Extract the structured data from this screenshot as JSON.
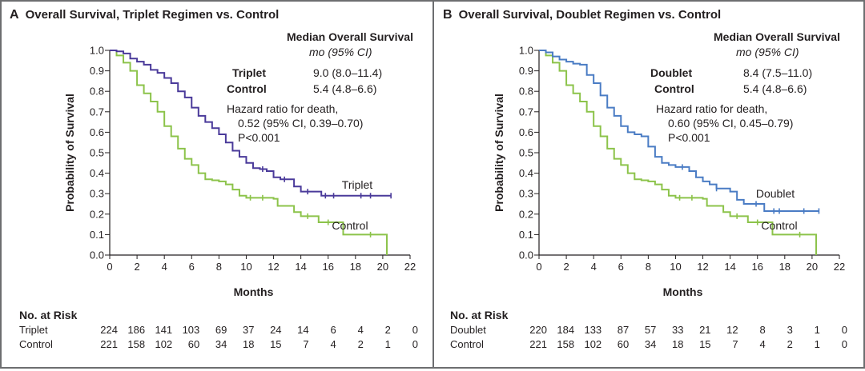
{
  "colors": {
    "triplet": "#4a3a9a",
    "doublet": "#4a7cc4",
    "control": "#8cc34a",
    "axis": "#231f20",
    "frame": "#6d6e70"
  },
  "chart_data": [
    {
      "type": "line",
      "subtype": "kaplan-meier",
      "panel_letter": "A",
      "title": "Overall Survival, Triplet Regimen vs. Control",
      "xlabel": "Months",
      "ylabel": "Probability of Survival",
      "xlim": [
        0,
        22
      ],
      "ylim": [
        0,
        1.0
      ],
      "x_ticks": [
        "0",
        "2",
        "4",
        "6",
        "8",
        "10",
        "12",
        "14",
        "16",
        "18",
        "20",
        "22"
      ],
      "y_ticks": [
        "0.0",
        "0.1",
        "0.2",
        "0.3",
        "0.4",
        "0.5",
        "0.6",
        "0.7",
        "0.8",
        "0.9",
        "1.0"
      ],
      "grid": false,
      "median_header": "Median Overall Survival",
      "median_subheader": "mo (95% CI)",
      "groups": [
        {
          "name": "Triplet",
          "median": "9.0 (8.0–11.4)"
        },
        {
          "name": "Control",
          "median": "5.4 (4.8–6.6)"
        }
      ],
      "hazard_lines": [
        "Hazard ratio for death,",
        "0.52 (95% CI, 0.39–0.70)",
        "P<0.001"
      ],
      "series": [
        {
          "name": "Triplet",
          "label": "Triplet",
          "color_key": "triplet",
          "x": [
            0,
            0.5,
            1.0,
            1.5,
            2.0,
            2.5,
            3.0,
            3.5,
            4.0,
            4.5,
            5.0,
            5.5,
            6.0,
            6.5,
            7.0,
            7.5,
            8.0,
            8.5,
            9.0,
            9.5,
            10.0,
            10.5,
            11.0,
            11.5,
            12.0,
            12.5,
            13.0,
            13.5,
            14.0,
            14.5,
            15.0,
            15.5,
            16.0,
            17.0,
            18.0,
            19.0,
            20.0,
            20.6
          ],
          "y": [
            1.0,
            0.995,
            0.985,
            0.96,
            0.945,
            0.93,
            0.905,
            0.89,
            0.865,
            0.84,
            0.8,
            0.77,
            0.72,
            0.68,
            0.65,
            0.62,
            0.59,
            0.55,
            0.51,
            0.48,
            0.45,
            0.425,
            0.42,
            0.41,
            0.38,
            0.37,
            0.37,
            0.335,
            0.31,
            0.31,
            0.31,
            0.29,
            0.29,
            0.29,
            0.29,
            0.29,
            0.29,
            0.29
          ],
          "censor_x": [
            11.2,
            12.8,
            14.5,
            15.8,
            16.4,
            18.4,
            19.1,
            20.6
          ]
        },
        {
          "name": "Control",
          "label": "Control",
          "color_key": "control",
          "x": [
            0,
            0.5,
            1.0,
            1.5,
            2.0,
            2.5,
            3.0,
            3.5,
            4.0,
            4.5,
            5.0,
            5.5,
            6.0,
            6.5,
            7.0,
            7.5,
            8.0,
            8.5,
            9.0,
            9.5,
            10.0,
            11.0,
            12.0,
            12.3,
            13.5,
            14.0,
            15.3,
            16.0,
            17.1,
            19.0,
            20.3,
            20.3
          ],
          "y": [
            1.0,
            0.975,
            0.94,
            0.9,
            0.83,
            0.79,
            0.75,
            0.7,
            0.63,
            0.58,
            0.52,
            0.47,
            0.44,
            0.4,
            0.37,
            0.365,
            0.36,
            0.345,
            0.32,
            0.29,
            0.28,
            0.28,
            0.275,
            0.24,
            0.21,
            0.19,
            0.16,
            0.16,
            0.1,
            0.1,
            0.1,
            0.0
          ],
          "censor_x": [
            10.3,
            11.2,
            14.5,
            16.0,
            19.1
          ]
        }
      ],
      "risk_table": {
        "title": "No. at Risk",
        "rows": [
          {
            "name": "Triplet",
            "values": [
              "224",
              "186",
              "141",
              "103",
              "69",
              "37",
              "24",
              "14",
              "6",
              "4",
              "2",
              "0"
            ]
          },
          {
            "name": "Control",
            "values": [
              "221",
              "158",
              "102",
              "60",
              "34",
              "18",
              "15",
              "7",
              "4",
              "2",
              "1",
              "0"
            ]
          }
        ]
      }
    },
    {
      "type": "line",
      "subtype": "kaplan-meier",
      "panel_letter": "B",
      "title": "Overall Survival, Doublet Regimen vs. Control",
      "xlabel": "Months",
      "ylabel": "Probability of Survival",
      "xlim": [
        0,
        22
      ],
      "ylim": [
        0,
        1.0
      ],
      "x_ticks": [
        "0",
        "2",
        "4",
        "6",
        "8",
        "10",
        "12",
        "14",
        "16",
        "18",
        "20",
        "22"
      ],
      "y_ticks": [
        "0.0",
        "0.1",
        "0.2",
        "0.3",
        "0.4",
        "0.5",
        "0.6",
        "0.7",
        "0.8",
        "0.9",
        "1.0"
      ],
      "grid": false,
      "median_header": "Median Overall Survival",
      "median_subheader": "mo (95% CI)",
      "groups": [
        {
          "name": "Doublet",
          "median": "8.4 (7.5–11.0)"
        },
        {
          "name": "Control",
          "median": "5.4 (4.8–6.6)"
        }
      ],
      "hazard_lines": [
        "Hazard ratio for death,",
        "0.60 (95% CI, 0.45–0.79)",
        "P<0.001"
      ],
      "series": [
        {
          "name": "Doublet",
          "label": "Doublet",
          "color_key": "doublet",
          "x": [
            0,
            0.5,
            1.0,
            1.5,
            2.0,
            2.5,
            3.0,
            3.5,
            4.0,
            4.5,
            5.0,
            5.5,
            6.0,
            6.5,
            7.0,
            7.5,
            8.0,
            8.5,
            9.0,
            9.5,
            10.0,
            10.5,
            11.0,
            11.5,
            12.0,
            12.5,
            13.0,
            13.5,
            14.0,
            14.5,
            15.0,
            16.0,
            16.5,
            17.0,
            18.0,
            19.0,
            20.0,
            20.5
          ],
          "y": [
            1.0,
            0.99,
            0.97,
            0.955,
            0.945,
            0.935,
            0.93,
            0.88,
            0.84,
            0.78,
            0.72,
            0.68,
            0.63,
            0.6,
            0.59,
            0.58,
            0.53,
            0.48,
            0.45,
            0.44,
            0.43,
            0.43,
            0.41,
            0.38,
            0.36,
            0.345,
            0.325,
            0.325,
            0.31,
            0.27,
            0.25,
            0.25,
            0.215,
            0.215,
            0.215,
            0.215,
            0.215,
            0.215
          ],
          "censor_x": [
            10.5,
            13.0,
            15.9,
            17.2,
            17.6,
            19.4,
            20.5
          ]
        },
        {
          "name": "Control",
          "label": "Control",
          "color_key": "control",
          "x": [
            0,
            0.5,
            1.0,
            1.5,
            2.0,
            2.5,
            3.0,
            3.5,
            4.0,
            4.5,
            5.0,
            5.5,
            6.0,
            6.5,
            7.0,
            7.5,
            8.0,
            8.5,
            9.0,
            9.5,
            10.0,
            11.0,
            12.0,
            12.3,
            13.5,
            14.0,
            15.3,
            16.0,
            17.1,
            19.0,
            20.3,
            20.3
          ],
          "y": [
            1.0,
            0.975,
            0.94,
            0.9,
            0.83,
            0.79,
            0.75,
            0.7,
            0.63,
            0.58,
            0.52,
            0.47,
            0.44,
            0.4,
            0.37,
            0.365,
            0.36,
            0.345,
            0.32,
            0.29,
            0.28,
            0.28,
            0.275,
            0.24,
            0.21,
            0.19,
            0.16,
            0.16,
            0.1,
            0.1,
            0.1,
            0.0
          ],
          "censor_x": [
            10.3,
            11.2,
            14.5,
            16.0,
            19.1
          ]
        }
      ],
      "risk_table": {
        "title": "No. at Risk",
        "rows": [
          {
            "name": "Doublet",
            "values": [
              "220",
              "184",
              "133",
              "87",
              "57",
              "33",
              "21",
              "12",
              "8",
              "3",
              "1",
              "0"
            ]
          },
          {
            "name": "Control",
            "values": [
              "221",
              "158",
              "102",
              "60",
              "34",
              "18",
              "15",
              "7",
              "4",
              "2",
              "1",
              "0"
            ]
          }
        ]
      }
    }
  ]
}
